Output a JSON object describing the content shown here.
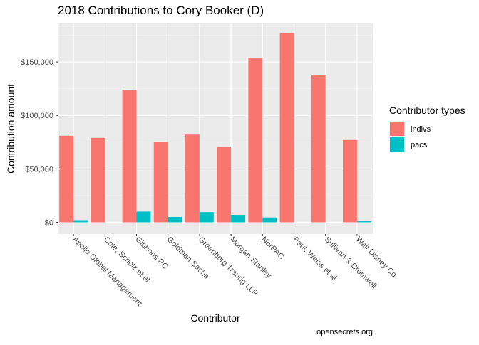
{
  "chart_data": {
    "type": "bar",
    "title": "2018 Contributions to Cory Booker (D)",
    "xlabel": "Contributor",
    "ylabel": "Contribution amount",
    "categories": [
      "Apollo Global Management",
      "Cole, Scholz et al",
      "Gibbons PC",
      "Goldman Sachs",
      "Greenberg Traurig LLP",
      "Morgan Stanley",
      "NorPAC",
      "Paul, Weiss et al",
      "Sullivan & Cromwell",
      "Walt Disney Co"
    ],
    "series": [
      {
        "name": "indivs",
        "color": "#F8766D",
        "values": [
          81000,
          79000,
          124000,
          75000,
          82000,
          70500,
          154000,
          177000,
          138000,
          77000
        ]
      },
      {
        "name": "pacs",
        "color": "#00BFC4",
        "values": [
          2000,
          0,
          10000,
          5000,
          9500,
          7000,
          4500,
          0,
          0,
          1500
        ]
      }
    ],
    "ylim": [
      -11000,
      186000
    ],
    "yticks": [
      0,
      50000,
      100000,
      150000
    ],
    "ytick_labels": [
      "$0",
      "$50,000",
      "$100,000",
      "$150,000"
    ],
    "grid": true,
    "legend": {
      "title": "Contributor types",
      "position": "right"
    },
    "caption": "opensecrets.org"
  }
}
